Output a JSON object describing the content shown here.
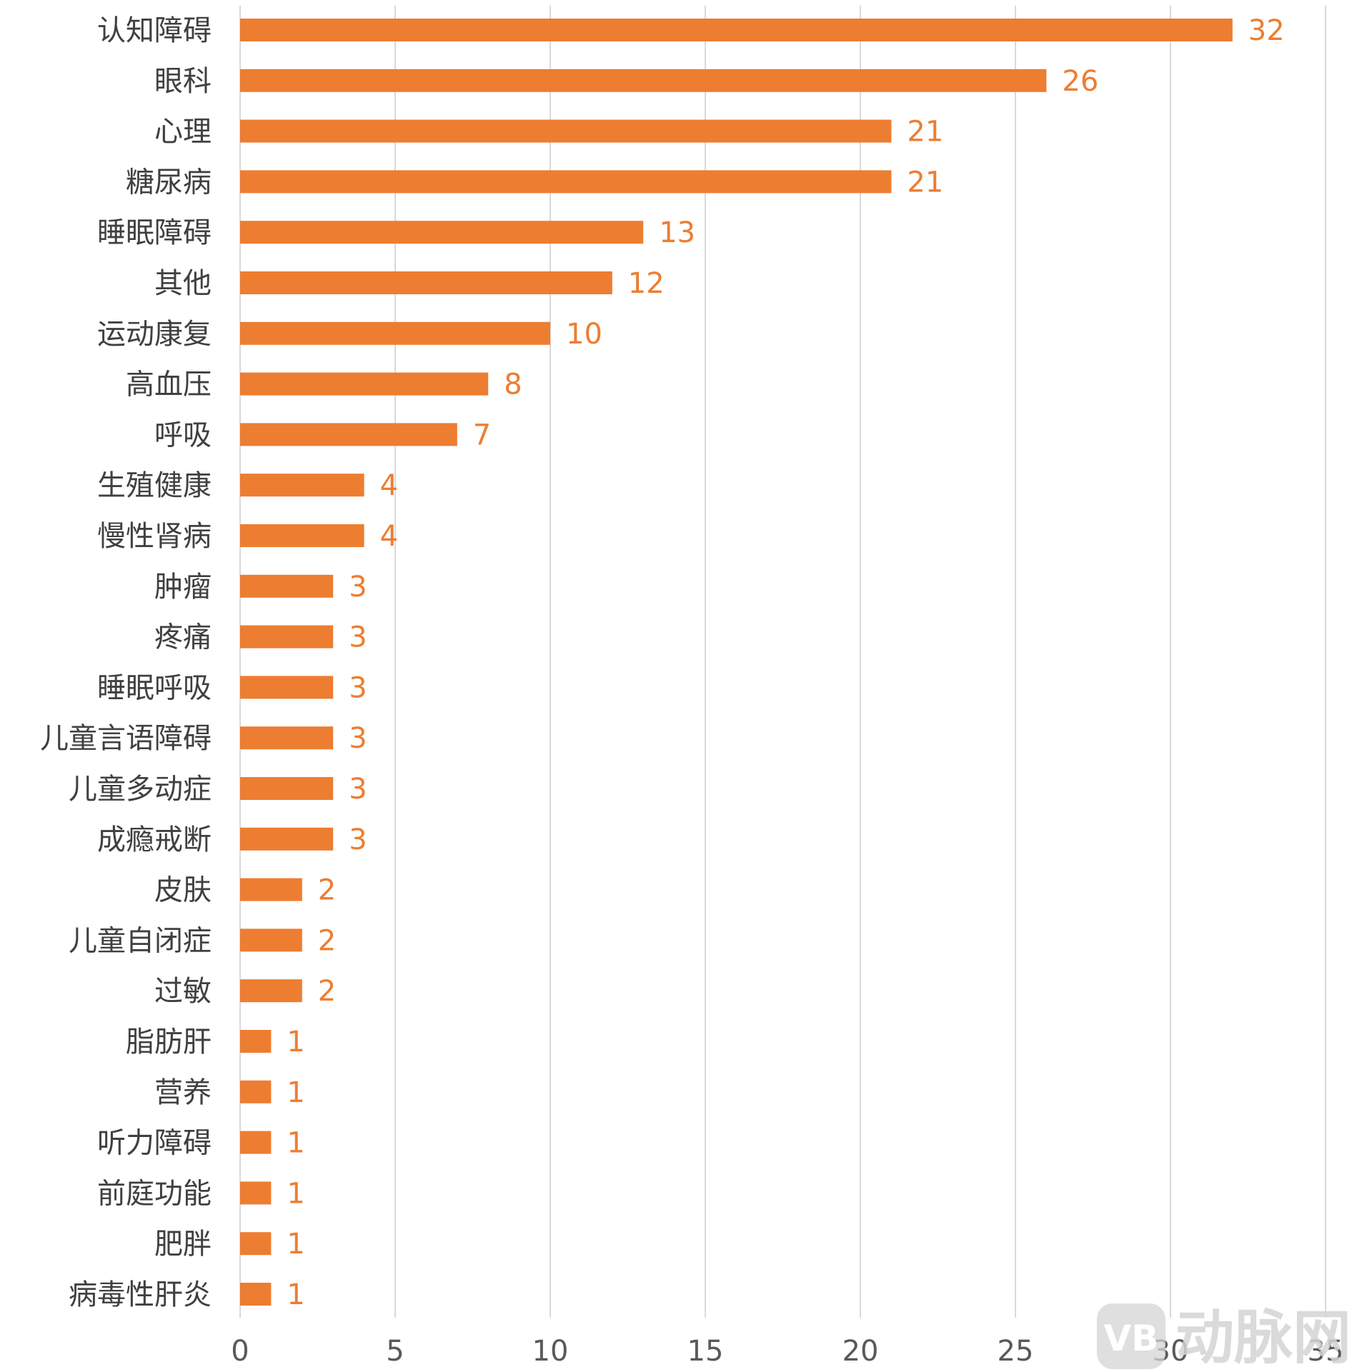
{
  "chart_data": {
    "type": "bar",
    "orientation": "horizontal",
    "categories": [
      "认知障碍",
      "眼科",
      "心理",
      "糖尿病",
      "睡眠障碍",
      "其他",
      "运动康复",
      "高血压",
      "呼吸",
      "生殖健康",
      "慢性肾病",
      "肿瘤",
      "疼痛",
      "睡眠呼吸",
      "儿童言语障碍",
      "儿童多动症",
      "成瘾戒断",
      "皮肤",
      "儿童自闭症",
      "过敏",
      "脂肪肝",
      "营养",
      "听力障碍",
      "前庭功能",
      "肥胖",
      "病毒性肝炎"
    ],
    "values": [
      32,
      26,
      21,
      21,
      13,
      12,
      10,
      8,
      7,
      4,
      4,
      3,
      3,
      3,
      3,
      3,
      3,
      2,
      2,
      2,
      1,
      1,
      1,
      1,
      1,
      1
    ],
    "title": "",
    "xlabel": "",
    "ylabel": "",
    "xlim": [
      0,
      35
    ],
    "xticks": [
      0,
      5,
      10,
      15,
      20,
      25,
      30,
      35
    ],
    "grid": "vertical",
    "data_labels": true,
    "bar_color": "#ED7D31",
    "label_color": "#ED7D31"
  },
  "watermark": {
    "logo_letter": "VB",
    "text": "动脉网"
  }
}
